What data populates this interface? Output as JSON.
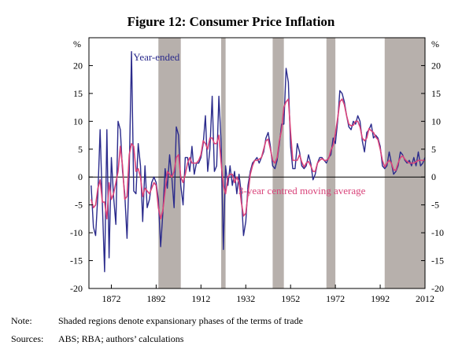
{
  "title": "Figure 12: Consumer Price Inflation",
  "note_label": "Note:",
  "note_text": "Shaded regions denote expansionary phases of the terms of trade",
  "sources_label": "Sources:",
  "sources_text": "ABS; RBA; authors’ calculations",
  "chart_data": {
    "type": "line",
    "y_unit_left": "%",
    "y_unit_right": "%",
    "ylim": [
      -20,
      25
    ],
    "xlim": [
      1862,
      2012
    ],
    "y_ticks": [
      -20,
      -15,
      -10,
      -5,
      0,
      5,
      10,
      15,
      20
    ],
    "y_tick_labels": [
      "-20",
      "-15",
      "-10",
      "-5",
      "0",
      "5",
      "10",
      "15",
      "20"
    ],
    "x_ticks": [
      1872,
      1892,
      1912,
      1932,
      1952,
      1972,
      1992,
      2012
    ],
    "x_tick_labels": [
      "1872",
      "1892",
      "1912",
      "1932",
      "1952",
      "1972",
      "1992",
      "2012"
    ],
    "shaded_periods": [
      [
        1893,
        1903
      ],
      [
        1921,
        1923
      ],
      [
        1944,
        1949
      ],
      [
        1968,
        1972
      ],
      [
        1994,
        2012
      ]
    ],
    "series": [
      {
        "name": "Year-ended",
        "color": "#2b2b8c",
        "x": [
          1863,
          1864,
          1865,
          1866,
          1867,
          1868,
          1869,
          1870,
          1871,
          1872,
          1873,
          1874,
          1875,
          1876,
          1877,
          1878,
          1879,
          1880,
          1881,
          1882,
          1883,
          1884,
          1885,
          1886,
          1887,
          1888,
          1889,
          1890,
          1891,
          1892,
          1893,
          1894,
          1895,
          1896,
          1897,
          1898,
          1899,
          1900,
          1901,
          1902,
          1903,
          1904,
          1905,
          1906,
          1907,
          1908,
          1909,
          1910,
          1911,
          1912,
          1913,
          1914,
          1915,
          1916,
          1917,
          1918,
          1919,
          1920,
          1921,
          1922,
          1923,
          1924,
          1925,
          1926,
          1927,
          1928,
          1929,
          1930,
          1931,
          1932,
          1933,
          1934,
          1935,
          1936,
          1937,
          1938,
          1939,
          1940,
          1941,
          1942,
          1943,
          1944,
          1945,
          1946,
          1947,
          1948,
          1949,
          1950,
          1951,
          1952,
          1953,
          1954,
          1955,
          1956,
          1957,
          1958,
          1959,
          1960,
          1961,
          1962,
          1963,
          1964,
          1965,
          1966,
          1967,
          1968,
          1969,
          1970,
          1971,
          1972,
          1973,
          1974,
          1975,
          1976,
          1977,
          1978,
          1979,
          1980,
          1981,
          1982,
          1983,
          1984,
          1985,
          1986,
          1987,
          1988,
          1989,
          1990,
          1991,
          1992,
          1993,
          1994,
          1995,
          1996,
          1997,
          1998,
          1999,
          2000,
          2001,
          2002,
          2003,
          2004,
          2005,
          2006,
          2007,
          2008,
          2009,
          2010,
          2011,
          2012
        ],
        "y": [
          -1.5,
          -9,
          -10.5,
          -3,
          8.5,
          -5,
          -17,
          8.5,
          -14.5,
          3.5,
          -3.5,
          -8.5,
          10,
          8.5,
          1,
          -3,
          -11,
          1,
          22.5,
          -2.5,
          -3,
          6,
          2,
          -8,
          2,
          -5.5,
          -4,
          -1,
          0,
          -1,
          -4,
          -12.5,
          -6.5,
          1.5,
          -2,
          4,
          0,
          -5.5,
          9,
          7.5,
          -1.5,
          -5,
          3.5,
          3.5,
          1,
          5.5,
          0.5,
          2.5,
          2.5,
          3.5,
          6,
          11,
          1,
          5,
          14.5,
          1,
          2,
          14.5,
          6,
          -13,
          2,
          -1.5,
          2,
          -1.5,
          1,
          -3,
          0.5,
          -3,
          -10.5,
          -8,
          -1.5,
          1,
          2.5,
          3,
          3.5,
          2.5,
          3.5,
          4.5,
          7,
          8,
          5.5,
          2,
          1.5,
          3,
          6,
          9.5,
          9.5,
          19.5,
          17,
          5.5,
          1.5,
          1.5,
          6,
          4.5,
          2,
          1.5,
          2,
          4,
          2.5,
          -0.5,
          0.5,
          2.5,
          3.5,
          3.5,
          3,
          2.5,
          3.5,
          4,
          7,
          6,
          10,
          15.5,
          15,
          13.5,
          11,
          9,
          8.5,
          10,
          9.5,
          11,
          10,
          6.5,
          4.5,
          8,
          8.5,
          9.5,
          7,
          7.5,
          7,
          5.5,
          2,
          1.5,
          2,
          4.5,
          2.5,
          0.5,
          1,
          2,
          4.5,
          4,
          3,
          2.5,
          3,
          2,
          3.5,
          2,
          4.5,
          2,
          2.5,
          3.5
        ]
      },
      {
        "name": "3-year centred moving average",
        "color": "#d9437a",
        "x": [
          1863,
          1864,
          1865,
          1866,
          1867,
          1868,
          1869,
          1870,
          1871,
          1872,
          1873,
          1874,
          1875,
          1876,
          1877,
          1878,
          1879,
          1880,
          1881,
          1882,
          1883,
          1884,
          1885,
          1886,
          1887,
          1888,
          1889,
          1890,
          1891,
          1892,
          1893,
          1894,
          1895,
          1896,
          1897,
          1898,
          1899,
          1900,
          1901,
          1902,
          1903,
          1904,
          1905,
          1906,
          1907,
          1908,
          1909,
          1910,
          1911,
          1912,
          1913,
          1914,
          1915,
          1916,
          1917,
          1918,
          1919,
          1920,
          1921,
          1922,
          1923,
          1924,
          1925,
          1926,
          1927,
          1928,
          1929,
          1930,
          1931,
          1932,
          1933,
          1934,
          1935,
          1936,
          1937,
          1938,
          1939,
          1940,
          1941,
          1942,
          1943,
          1944,
          1945,
          1946,
          1947,
          1948,
          1949,
          1950,
          1951,
          1952,
          1953,
          1954,
          1955,
          1956,
          1957,
          1958,
          1959,
          1960,
          1961,
          1962,
          1963,
          1964,
          1965,
          1966,
          1967,
          1968,
          1969,
          1970,
          1971,
          1972,
          1973,
          1974,
          1975,
          1976,
          1977,
          1978,
          1979,
          1980,
          1981,
          1982,
          1983,
          1984,
          1985,
          1986,
          1987,
          1988,
          1989,
          1990,
          1991,
          1992,
          1993,
          1994,
          1995,
          1996,
          1997,
          1998,
          1999,
          2000,
          2001,
          2002,
          2003,
          2004,
          2005,
          2006,
          2007,
          2008,
          2009,
          2010,
          2011,
          2012
        ],
        "y": [
          -4,
          -5.5,
          -5,
          -2,
          -0.5,
          -4.5,
          -4.5,
          -7.5,
          -1,
          -4,
          -3,
          -1,
          1,
          5.5,
          2,
          -4,
          -3.5,
          4,
          6,
          5.5,
          1,
          1.5,
          0,
          -3.5,
          -2,
          -2.5,
          -3,
          -2,
          -1,
          -1.5,
          -5.5,
          -7.5,
          -6,
          -2.5,
          1,
          0.5,
          0,
          1,
          3.5,
          4,
          0,
          -1,
          0.5,
          2.5,
          3.5,
          2.5,
          2.5,
          2.5,
          3,
          4,
          6.5,
          6,
          5,
          7,
          7,
          6,
          6,
          7.5,
          2.5,
          -1.5,
          -3,
          0,
          0.5,
          0.5,
          -1,
          0,
          -1,
          -4.5,
          -7,
          -6.5,
          -3,
          0.5,
          2,
          3,
          3,
          3.2,
          3.5,
          5,
          6.5,
          6.8,
          5,
          3,
          2.5,
          3.5,
          6.5,
          8.5,
          12.5,
          13.5,
          14,
          8,
          3,
          3,
          3,
          4,
          2.7,
          1.8,
          2.5,
          2.8,
          2,
          1,
          1,
          2.5,
          3,
          3.3,
          3,
          3,
          3.3,
          4.8,
          5.7,
          7.8,
          10.5,
          13.5,
          14,
          13,
          11,
          9.5,
          9.2,
          9.3,
          10,
          10,
          9,
          7,
          6.5,
          7,
          8.7,
          8.3,
          8,
          7.2,
          6.7,
          5,
          3,
          1.8,
          2.5,
          3,
          2.5,
          1.3,
          1.2,
          2.5,
          3.5,
          3.8,
          3.2,
          2.8,
          2.5,
          2.5,
          2.5,
          2.7,
          3,
          3,
          3,
          3
        ]
      }
    ],
    "annotations": [
      {
        "text": "Year-ended",
        "x": 1880,
        "y": 21.5
      },
      {
        "text": "3-year centred moving average",
        "x": 1927,
        "y": -2.5
      }
    ]
  }
}
